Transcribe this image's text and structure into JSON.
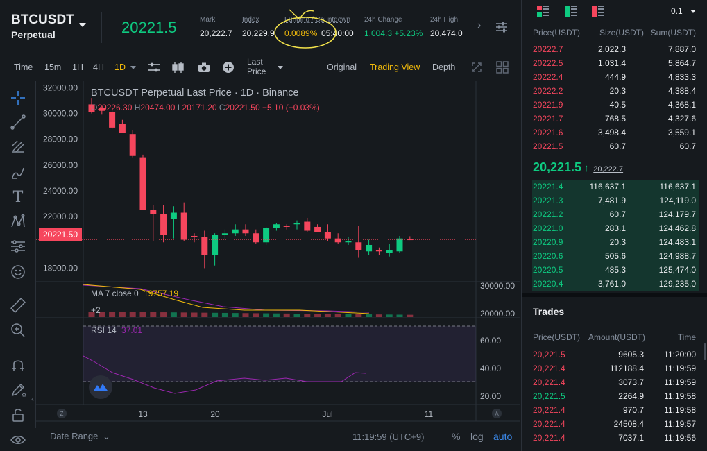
{
  "header": {
    "symbol": "BTCUSDT",
    "contract_type": "Perpetual",
    "last_price": "20221.5",
    "mark_label": "Mark",
    "mark_value": "20,222.7",
    "index_label": "Index",
    "index_value": "20,229.9",
    "funding_label": "Funding / Countdown",
    "funding_rate": "0.0089%",
    "countdown": "05:40:00",
    "change_label": "24h Change",
    "change_value": "1,004.3 +5.23%",
    "high_label": "24h High",
    "high_value": "20,474.0"
  },
  "toolbar": {
    "intervals": [
      "Time",
      "15m",
      "1H",
      "4H",
      "1D"
    ],
    "active_interval": "1D",
    "last_price_label": "Last\nPrice",
    "views": [
      "Original",
      "Trading View",
      "Depth"
    ],
    "active_view": "Trading View"
  },
  "chart": {
    "title": "BTCUSDT Perpetual Last Price · 1D · Binance",
    "ohlc": {
      "o_label": "O",
      "o": "20226.30",
      "h_label": "H",
      "h": "20474.00",
      "l_label": "L",
      "l": "20171.20",
      "c_label": "C",
      "c": "20221.50",
      "chg": "−5.10 (−0.03%)"
    },
    "price_axis": [
      "32000.00",
      "30000.00",
      "28000.00",
      "26000.00",
      "24000.00",
      "22000.00",
      "18000.00"
    ],
    "current_price_tag": "20221.50",
    "ma_label": "MA 7 close 0",
    "ma_value": "19757.19",
    "vol_axis": [
      "30000.00",
      "20000.00"
    ],
    "vol_more": "+2",
    "rsi_label": "RSI 14",
    "rsi_value": "37.01",
    "rsi_axis": [
      "60.00",
      "40.00",
      "20.00"
    ],
    "time_axis": [
      "13",
      "20",
      "Jul",
      "11"
    ],
    "axis_corner_left": "Z",
    "axis_corner_right": "A",
    "date_range_label": "Date Range",
    "clock": "11:19:59 (UTC+9)",
    "scale_percent": "%",
    "scale_log": "log",
    "scale_auto": "auto"
  },
  "chart_data": {
    "type": "candlestick",
    "title": "BTCUSDT Perpetual Last Price · 1D · Binance",
    "ylim": [
      17000,
      32500
    ],
    "candles": [
      {
        "o": 30700,
        "h": 31200,
        "l": 30000,
        "c": 30100
      },
      {
        "o": 30400,
        "h": 30600,
        "l": 29900,
        "c": 30200
      },
      {
        "o": 30100,
        "h": 30300,
        "l": 28800,
        "c": 28900
      },
      {
        "o": 29200,
        "h": 29500,
        "l": 28600,
        "c": 28500
      },
      {
        "o": 28400,
        "h": 28700,
        "l": 26600,
        "c": 26700
      },
      {
        "o": 26600,
        "h": 26800,
        "l": 22500,
        "c": 22500
      },
      {
        "o": 22500,
        "h": 22900,
        "l": 20100,
        "c": 22200
      },
      {
        "o": 22200,
        "h": 22900,
        "l": 20000,
        "c": 20600
      },
      {
        "o": 21800,
        "h": 22800,
        "l": 20300,
        "c": 22300
      },
      {
        "o": 22300,
        "h": 23100,
        "l": 20100,
        "c": 20200
      },
      {
        "o": 20500,
        "h": 20700,
        "l": 20000,
        "c": 20400
      },
      {
        "o": 20400,
        "h": 20900,
        "l": 18000,
        "c": 19000
      },
      {
        "o": 19000,
        "h": 20700,
        "l": 18200,
        "c": 20600
      },
      {
        "o": 20600,
        "h": 21000,
        "l": 20200,
        "c": 20700
      },
      {
        "o": 20700,
        "h": 21400,
        "l": 20500,
        "c": 21000
      },
      {
        "o": 21000,
        "h": 21400,
        "l": 20500,
        "c": 20700
      },
      {
        "o": 20700,
        "h": 21000,
        "l": 19900,
        "c": 20000
      },
      {
        "o": 20000,
        "h": 21200,
        "l": 19800,
        "c": 21100
      },
      {
        "o": 21100,
        "h": 21500,
        "l": 20900,
        "c": 21400
      },
      {
        "o": 21300,
        "h": 21400,
        "l": 21000,
        "c": 21200
      },
      {
        "o": 21400,
        "h": 21700,
        "l": 21000,
        "c": 21500
      },
      {
        "o": 21600,
        "h": 21900,
        "l": 20800,
        "c": 20900
      },
      {
        "o": 21200,
        "h": 21400,
        "l": 20900,
        "c": 20800
      },
      {
        "o": 20800,
        "h": 21400,
        "l": 20100,
        "c": 20300
      },
      {
        "o": 20300,
        "h": 20700,
        "l": 19900,
        "c": 20000
      },
      {
        "o": 20000,
        "h": 20400,
        "l": 19800,
        "c": 20100
      },
      {
        "o": 20000,
        "h": 21300,
        "l": 18800,
        "c": 19400
      },
      {
        "o": 19300,
        "h": 20200,
        "l": 19000,
        "c": 19800
      },
      {
        "o": 19400,
        "h": 19600,
        "l": 19000,
        "c": 19300
      },
      {
        "o": 19200,
        "h": 19900,
        "l": 18900,
        "c": 19400
      },
      {
        "o": 19300,
        "h": 20500,
        "l": 19200,
        "c": 20300
      },
      {
        "o": 20226.3,
        "h": 20474,
        "l": 20171.2,
        "c": 20221.5
      }
    ]
  },
  "orderbook": {
    "depth_select": "0.1",
    "headers": [
      "Price(USDT)",
      "Size(USDT)",
      "Sum(USDT)"
    ],
    "asks": [
      {
        "price": "20222.7",
        "size": "2,022.3",
        "sum": "7,887.0"
      },
      {
        "price": "20222.5",
        "size": "1,031.4",
        "sum": "5,864.7"
      },
      {
        "price": "20222.4",
        "size": "444.9",
        "sum": "4,833.3"
      },
      {
        "price": "20222.2",
        "size": "20.3",
        "sum": "4,388.4"
      },
      {
        "price": "20221.9",
        "size": "40.5",
        "sum": "4,368.1"
      },
      {
        "price": "20221.7",
        "size": "768.5",
        "sum": "4,327.6"
      },
      {
        "price": "20221.6",
        "size": "3,498.4",
        "sum": "3,559.1"
      },
      {
        "price": "20221.5",
        "size": "60.7",
        "sum": "60.7"
      }
    ],
    "last_price": "20,221.5",
    "arrow": "↑",
    "mark_price": "20,222.7",
    "bids": [
      {
        "price": "20221.4",
        "size": "116,637.1",
        "sum": "116,637.1"
      },
      {
        "price": "20221.3",
        "size": "7,481.9",
        "sum": "124,119.0"
      },
      {
        "price": "20221.2",
        "size": "60.7",
        "sum": "124,179.7"
      },
      {
        "price": "20221.0",
        "size": "283.1",
        "sum": "124,462.8"
      },
      {
        "price": "20220.9",
        "size": "20.3",
        "sum": "124,483.1"
      },
      {
        "price": "20220.6",
        "size": "505.6",
        "sum": "124,988.7"
      },
      {
        "price": "20220.5",
        "size": "485.3",
        "sum": "125,474.0"
      },
      {
        "price": "20220.4",
        "size": "3,761.0",
        "sum": "129,235.0"
      }
    ]
  },
  "trades": {
    "title": "Trades",
    "headers": [
      "Price(USDT)",
      "Amount(USDT)",
      "Time"
    ],
    "rows": [
      {
        "price": "20,221.5",
        "amount": "9605.3",
        "time": "11:20:00",
        "side": "sell"
      },
      {
        "price": "20,221.4",
        "amount": "112188.4",
        "time": "11:19:59",
        "side": "sell"
      },
      {
        "price": "20,221.4",
        "amount": "3073.7",
        "time": "11:19:59",
        "side": "sell"
      },
      {
        "price": "20,221.5",
        "amount": "2264.9",
        "time": "11:19:58",
        "side": "buy"
      },
      {
        "price": "20,221.4",
        "amount": "970.7",
        "time": "11:19:58",
        "side": "sell"
      },
      {
        "price": "20,221.4",
        "amount": "24508.4",
        "time": "11:19:57",
        "side": "sell"
      },
      {
        "price": "20,221.4",
        "amount": "7037.1",
        "time": "11:19:56",
        "side": "sell"
      }
    ]
  },
  "colors": {
    "up": "#0ecb81",
    "down": "#f6465d",
    "accent": "#f0b90b",
    "bg": "#161a1e"
  }
}
